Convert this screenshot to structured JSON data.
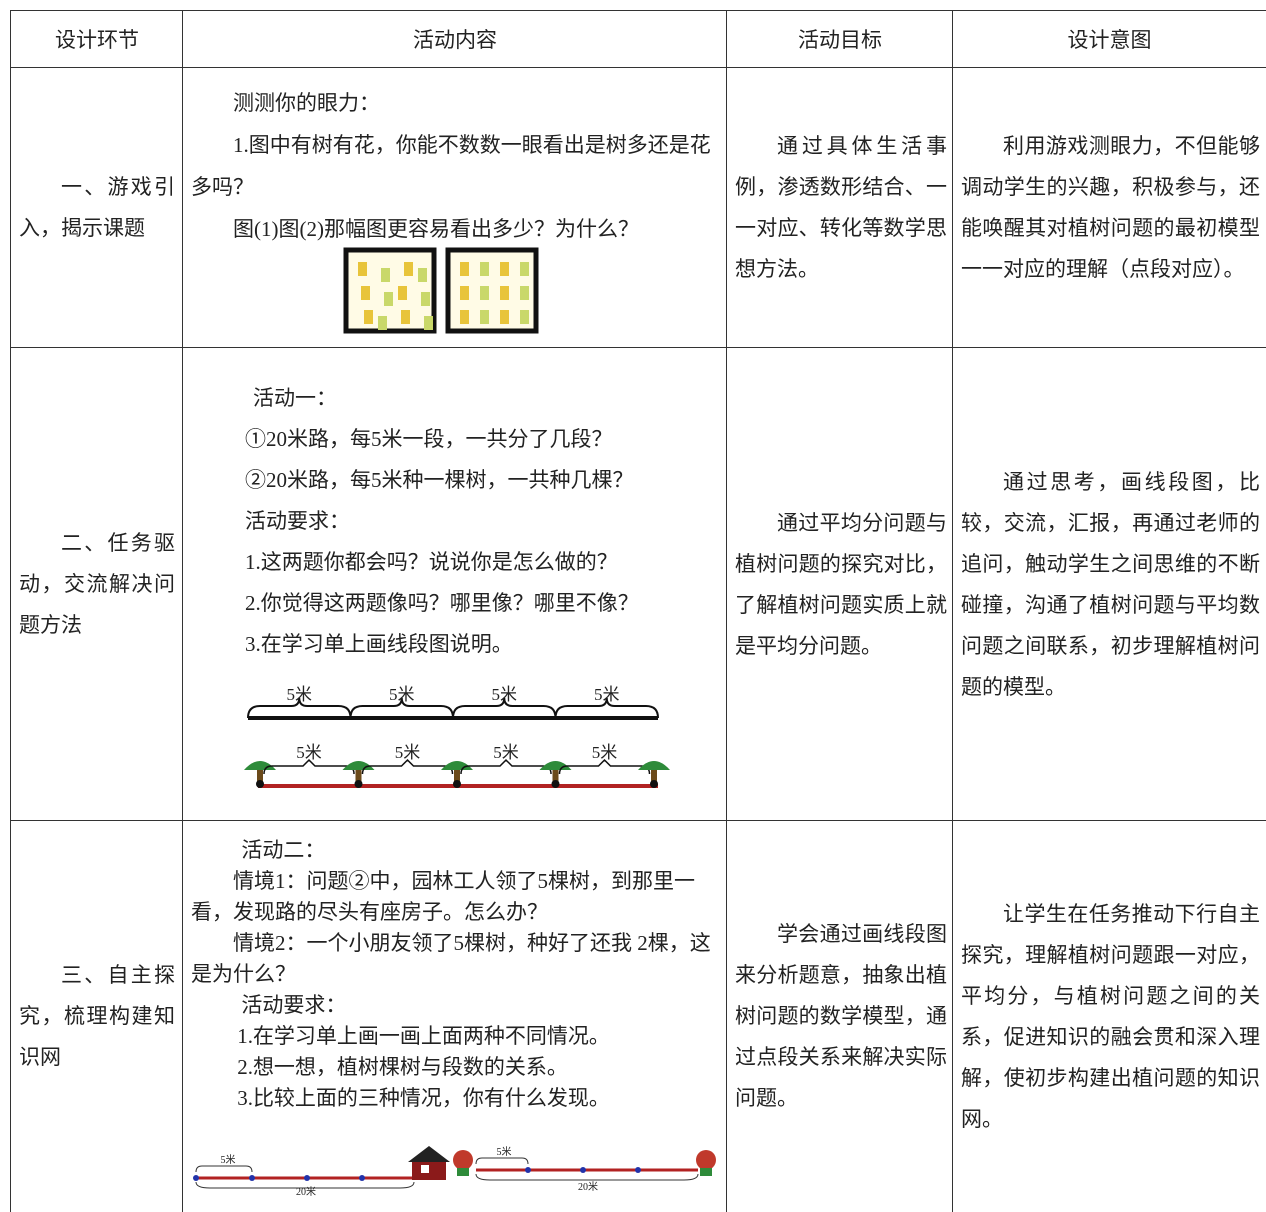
{
  "table": {
    "header": [
      "设计环节",
      "活动内容",
      "活动目标",
      "设计意图"
    ],
    "rows": [
      {
        "stage": "一、游戏引入，揭示课题",
        "content": [
          "测测你的眼力：",
          "1.图中有树有花，你能不数数一眼看出是树多还是花多吗？",
          "图(1)图(2)那幅图更容易看出多少？为什么？"
        ],
        "goal": "通过具体生活事例，渗透数形结合、一一对应、转化等数学思想方法。",
        "intent": "利用游戏测眼力，不但能够调动学生的兴趣，积极参与，还能唤醒其对植树问题的最初模型一一对应的理解（点段对应）。"
      },
      {
        "stage": "二、任务驱动，交流解决问题方法",
        "content": [
          "活动一：",
          "①20米路，每5米一段，一共分了几段？",
          "②20米路，每5米种一棵树，一共种几棵？",
          "活动要求：",
          "1.这两题你都会吗？说说你是怎么做的？",
          "2.你觉得这两题像吗？哪里像？哪里不像？",
          "3.在学习单上画线段图说明。"
        ],
        "diagram_labels": [
          "5米",
          "5米",
          "5米",
          "5米",
          "5米",
          "5米",
          "5米",
          "5米"
        ],
        "goal": "通过平均分问题与植树问题的探究对比，了解植树问题实质上就是平均分问题。",
        "intent": "通过思考，画线段图，比较，交流，汇报，再通过老师的追问，触动学生之间思维的不断碰撞，沟通了植树问题与平均数问题之间联系，初步理解植树问题的模型。"
      },
      {
        "stage": "三、自主探究，梳理构建知识网",
        "content": [
          "活动二：",
          "情境1：问题②中，园林工人领了5棵树，到那里一看，发现路的尽头有座房子。怎么办？",
          "情境2：一个小朋友领了5棵树，种好了还我 2棵，这是为什么？",
          "活动要求：",
          "1.在学习单上画一画上面两种不同情况。",
          "2.想一想，植树棵树与段数的关系。",
          "3.比较上面的三种情况，你有什么发现。"
        ],
        "diagram_labels": [
          "5米",
          "20米",
          "5米",
          "20米"
        ],
        "goal": "学会通过画线段图来分析题意，抽象出植树问题的数学模型，通过点段关系来解决实际问题。",
        "intent": "让学生在任务推动下行自主探究，理解植树问题跟一对应，平均分，与植树问题之间的关系，促进知识的融会贯和深入理解，使初步构建出植问题的知识网。"
      }
    ]
  }
}
